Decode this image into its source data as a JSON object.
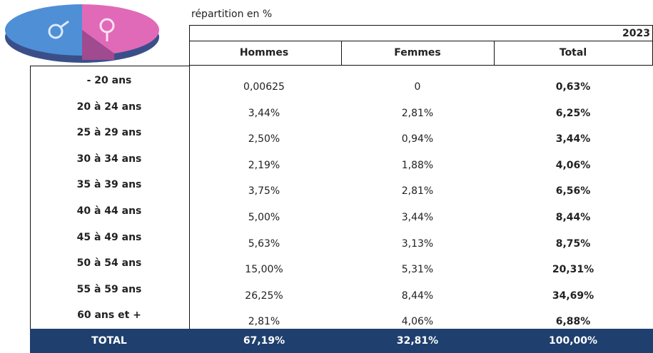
{
  "subtitle": "répartition en %",
  "year": "2023",
  "table": {
    "header": [
      "Hommes",
      "Femmes",
      "Total"
    ],
    "rows": [
      [
        "- 20 ans",
        "0,00625",
        "0",
        "0,63%"
      ],
      [
        "20 à 24 ans",
        "3,44%",
        "2,81%",
        "6,25%"
      ],
      [
        "25 à 29 ans",
        "2,50%",
        "0,94%",
        "3,44%"
      ],
      [
        "30 à 34 ans",
        "2,19%",
        "1,88%",
        "4,06%"
      ],
      [
        "35 à 39 ans",
        "3,75%",
        "2,81%",
        "6,56%"
      ],
      [
        "40 à 44 ans",
        "5,00%",
        "3,44%",
        "8,44%"
      ],
      [
        "45 à 49 ans",
        "5,63%",
        "3,13%",
        "8,75%"
      ],
      [
        "50 à 54 ans",
        "15,00%",
        "5,31%",
        "20,31%"
      ],
      [
        "55 à 59 ans",
        "26,25%",
        "8,44%",
        "34,69%"
      ],
      [
        "60 ans et +",
        "2,81%",
        "4,06%",
        "6,88%"
      ]
    ],
    "total": [
      "TOTAL",
      "67,19%",
      "32,81%",
      "100,00%"
    ]
  }
}
